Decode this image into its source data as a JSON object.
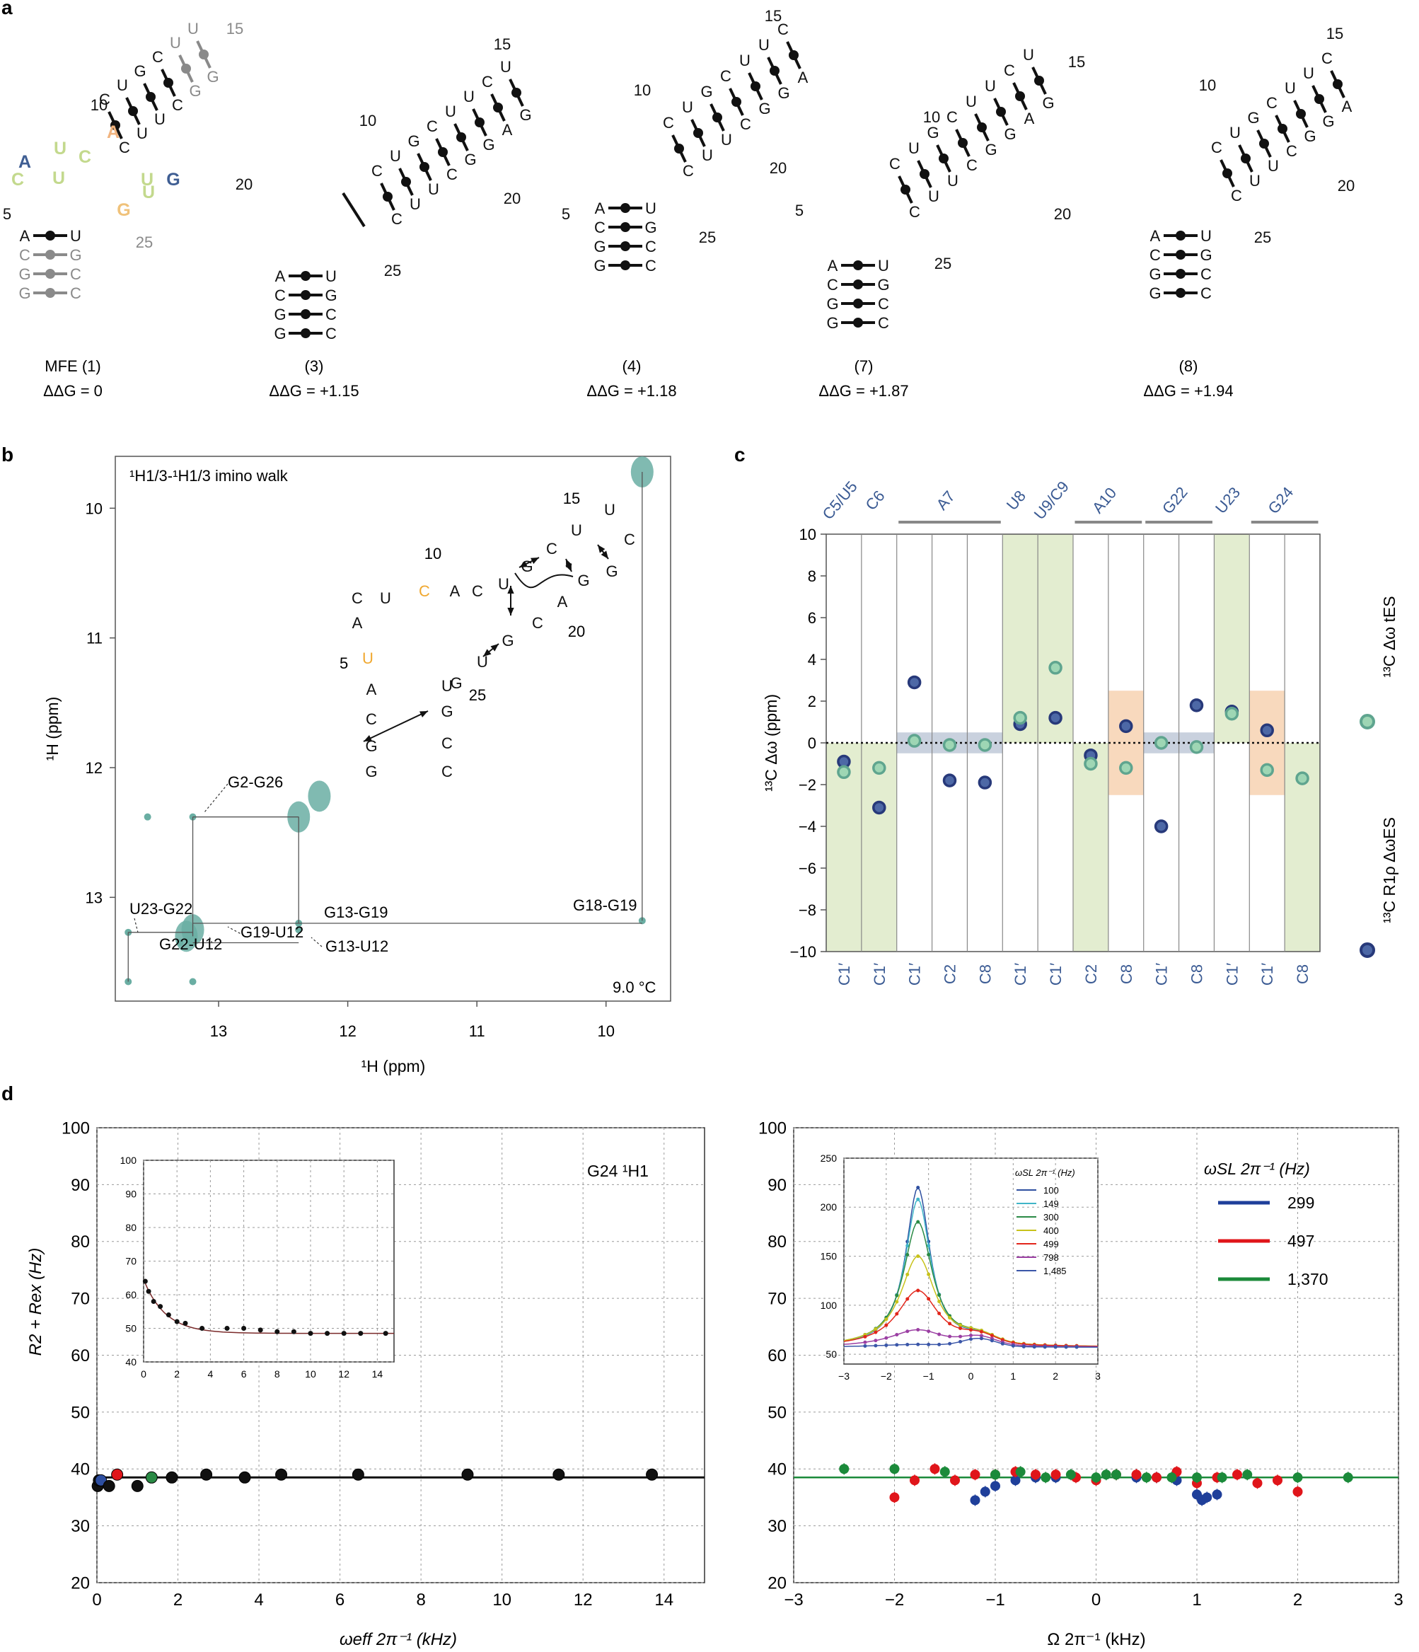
{
  "panel_labels": [
    "a",
    "b",
    "c",
    "d"
  ],
  "panel_a": {
    "structures": [
      {
        "number_label": "MFE (1)",
        "ddg": "ΔΔG = 0"
      },
      {
        "number_label": "(3)",
        "ddg": "ΔΔG = +1.15"
      },
      {
        "number_label": "(4)",
        "ddg": "ΔΔG = +1.18"
      },
      {
        "number_label": "(7)",
        "ddg": "ΔΔG = +1.87"
      },
      {
        "number_label": "(8)",
        "ddg": "ΔΔG = +1.94"
      }
    ],
    "stem_pairs": [
      [
        "A",
        "U"
      ],
      [
        "C",
        "G"
      ],
      [
        "G",
        "C"
      ],
      [
        "G",
        "C"
      ]
    ],
    "position_numbers": [
      "5",
      "10",
      "15",
      "20",
      "25"
    ],
    "mfe_highlight": [
      {
        "nt": "A",
        "color": "#3f5e93"
      },
      {
        "nt": "U",
        "color": "#c3d98d"
      },
      {
        "nt": "C",
        "color": "#c3d98d"
      },
      {
        "nt": "A",
        "color": "#f1b47f"
      },
      {
        "nt": "U",
        "color": "#c3d98d"
      },
      {
        "nt": "C",
        "color": "#c3d98d"
      },
      {
        "nt": "U",
        "color": "#c3d98d"
      },
      {
        "nt": "G",
        "color": "#f0c27a"
      },
      {
        "nt": "U",
        "color": "#c3d98d"
      },
      {
        "nt": "G",
        "color": "#3f5e93"
      }
    ]
  },
  "panel_b": {
    "title": "¹H1/3-¹H1/3 imino walk",
    "temperature": "9.0 °C",
    "x_axis_label": "¹H (ppm)",
    "y_axis_label": "¹H (ppm)",
    "x_ticks": [
      "13",
      "12",
      "11",
      "10"
    ],
    "y_ticks": [
      "10",
      "11",
      "12",
      "13"
    ],
    "xlim": [
      13.8,
      9.5
    ],
    "ylim": [
      9.6,
      13.8
    ],
    "crosspeak_labels": [
      "G2-G26",
      "U23-G22",
      "G13-G19",
      "G18-G19",
      "G13-U12",
      "G19-U12",
      "G22-U12"
    ],
    "highlight_color": "#f0a830",
    "peak_color": "#6aaea3",
    "inset_numbers": [
      "5",
      "10",
      "15",
      "20",
      "25"
    ]
  },
  "panel_c": {
    "y_axis_label": "¹³C Δω (ppm)",
    "ylim": [
      -10,
      10
    ],
    "y_ticks": [
      "10",
      "8",
      "6",
      "4",
      "2",
      "0",
      "−2",
      "−4",
      "−6",
      "−8",
      "−10"
    ],
    "residue_headers": [
      "C5/U5",
      "C6",
      "A7",
      "U8",
      "U9/C9",
      "A10",
      "G22",
      "U23",
      "G24"
    ],
    "columns": [
      "C1′",
      "C1′",
      "C1′",
      "C2",
      "C8",
      "C1′",
      "C1′",
      "C2",
      "C8",
      "C1′",
      "C8",
      "C1′",
      "C1′",
      "C8"
    ],
    "legend": [
      {
        "label": "¹³C Δω tES",
        "color": "#8ccfa8"
      },
      {
        "label": "¹³C R1ρ ΔωES",
        "color": "#45629e"
      }
    ],
    "chart_data": {
      "type": "scatter",
      "categories": [
        "C1′",
        "C1′",
        "C1′",
        "C2",
        "C8",
        "C1′",
        "C1′",
        "C2",
        "C8",
        "C1′",
        "C8",
        "C1′",
        "C1′",
        "C8"
      ],
      "series": [
        {
          "name": "¹³C R1ρ ΔωES",
          "values": [
            -0.9,
            -3.1,
            2.9,
            -1.8,
            -1.9,
            0.9,
            1.2,
            -0.6,
            0.8,
            -4.0,
            1.8,
            1.5,
            0.6,
            null
          ]
        },
        {
          "name": "¹³C Δω tES",
          "values": [
            -1.4,
            -1.2,
            0.1,
            -0.1,
            -0.1,
            1.2,
            3.6,
            -1.0,
            -1.2,
            0.0,
            -0.2,
            1.4,
            -1.3,
            -1.7
          ]
        }
      ],
      "ylim": [
        -10,
        10
      ]
    }
  },
  "panel_d_left": {
    "annotation": "G24 ¹H1",
    "x_axis_label": "ωeff 2π⁻¹ (kHz)",
    "y_axis_label": "R2 + Rex (Hz)",
    "x_ticks": [
      "0",
      "2",
      "4",
      "6",
      "8",
      "10",
      "12",
      "14"
    ],
    "y_ticks": [
      "100",
      "90",
      "80",
      "70",
      "60",
      "50",
      "40",
      "30",
      "20"
    ],
    "inset_x_ticks": [
      "0",
      "2",
      "4",
      "6",
      "8",
      "10",
      "12",
      "14"
    ],
    "inset_y_ticks": [
      "100",
      "90",
      "80",
      "70",
      "60",
      "50",
      "40"
    ],
    "chart_data": {
      "type": "scatter",
      "xlim": [
        0,
        15
      ],
      "ylim": [
        20,
        100
      ],
      "series": [
        {
          "name": "data",
          "x": [
            0.02,
            0.05,
            0.1,
            0.3,
            0.5,
            1.0,
            1.35,
            1.85,
            2.7,
            3.65,
            4.55,
            6.45,
            9.15,
            11.4,
            13.7
          ],
          "y": [
            37,
            38,
            38,
            37,
            39,
            37,
            38.5,
            38.5,
            39,
            38.5,
            39,
            39,
            39,
            39,
            39
          ]
        }
      ],
      "fit": 38.5,
      "inset": {
        "xlim": [
          0,
          15
        ],
        "ylim": [
          40,
          100
        ],
        "x": [
          0.1,
          0.3,
          0.6,
          1.0,
          1.5,
          2.0,
          2.5,
          3.5,
          5.0,
          6.0,
          7.0,
          8.0,
          9.0,
          10.0,
          11.0,
          12.0,
          13.0,
          14.5
        ],
        "y": [
          64,
          61,
          58,
          56.5,
          54,
          52,
          51.5,
          50,
          50,
          50,
          49.5,
          49,
          49,
          48.5,
          48.5,
          48.5,
          48.5,
          48.5
        ]
      }
    }
  },
  "panel_d_right": {
    "x_axis_label": "Ω 2π⁻¹ (kHz)",
    "x_ticks": [
      "−3",
      "−2",
      "−1",
      "0",
      "1",
      "2",
      "3"
    ],
    "y_ticks": [
      "100",
      "90",
      "80",
      "70",
      "60",
      "50",
      "40",
      "30",
      "20"
    ],
    "legend_title": "ωSL 2π⁻¹ (Hz)",
    "legend": [
      {
        "label": "299",
        "color": "#1f3f9a"
      },
      {
        "label": "497",
        "color": "#e0151a"
      },
      {
        "label": "1,370",
        "color": "#1b8a3a"
      }
    ],
    "inset_legend_title": "ωSL 2π⁻¹ (Hz)",
    "inset_legend": [
      {
        "label": "100",
        "color": "#2e4fa0"
      },
      {
        "label": "149",
        "color": "#3fb5c8"
      },
      {
        "label": "300",
        "color": "#2a8a45"
      },
      {
        "label": "400",
        "color": "#c8c21a"
      },
      {
        "label": "499",
        "color": "#e2261b"
      },
      {
        "label": "798",
        "color": "#9b3fa3"
      },
      {
        "label": "1,485",
        "color": "#3a56a8"
      }
    ],
    "inset_x_ticks": [
      "−3",
      "−2",
      "−1",
      "0",
      "1",
      "2",
      "3"
    ],
    "inset_y_ticks": [
      "250",
      "200",
      "150",
      "100",
      "50"
    ],
    "chart_data": {
      "type": "scatter",
      "xlim": [
        -3,
        3
      ],
      "ylim": [
        20,
        100
      ],
      "fit": 38.5,
      "series": [
        {
          "name": "299",
          "x": [
            -1.2,
            -1.1,
            -1.0,
            -0.8,
            -0.6,
            -0.4,
            0.4,
            0.6,
            0.8,
            1.0,
            1.05,
            1.1,
            1.2
          ],
          "y": [
            34.5,
            36,
            37,
            38,
            38.5,
            38.5,
            38.5,
            38.5,
            38,
            35.5,
            34.5,
            35,
            35.5
          ]
        },
        {
          "name": "497",
          "x": [
            -2.0,
            -1.8,
            -1.6,
            -1.4,
            -1.2,
            -1.0,
            -0.8,
            -0.6,
            -0.4,
            -0.2,
            0.0,
            0.2,
            0.4,
            0.6,
            0.8,
            1.0,
            1.2,
            1.4,
            1.6,
            1.8,
            2.0
          ],
          "y": [
            35,
            38,
            40,
            38,
            39,
            39,
            39.5,
            39,
            39,
            38.5,
            38,
            39,
            39,
            38.5,
            39.5,
            37.5,
            38.5,
            39,
            37.5,
            38,
            36
          ]
        },
        {
          "name": "1,370",
          "x": [
            -2.5,
            -2.0,
            -1.5,
            -1.0,
            -0.75,
            -0.5,
            -0.25,
            0.0,
            0.1,
            0.2,
            0.5,
            0.75,
            1.0,
            1.25,
            1.5,
            2.0,
            2.5
          ],
          "y": [
            40,
            40,
            39.5,
            39,
            39.5,
            38.5,
            39,
            38.5,
            39,
            39,
            38.5,
            38.5,
            38.5,
            38.5,
            39,
            38.5,
            38.5
          ]
        }
      ]
    }
  }
}
